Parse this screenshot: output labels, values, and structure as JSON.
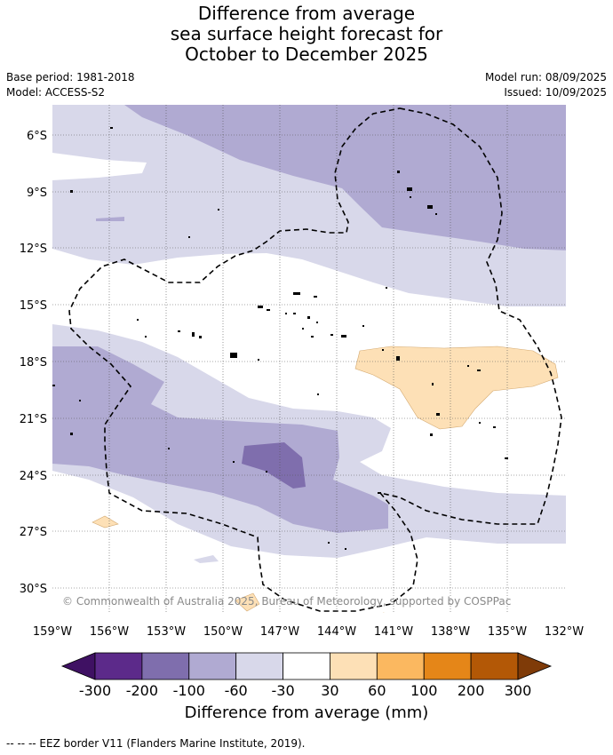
{
  "title": {
    "line1": "Difference from average",
    "line2": "sea surface height forecast for",
    "line3": "October to December 2025"
  },
  "meta": {
    "base_period": "Base period: 1981-2018",
    "model": "Model: ACCESS-S2",
    "model_run": "Model run: 08/09/2025",
    "issued": "Issued: 10/09/2025"
  },
  "copyright": "© Commonwealth of Australia 2025, Bureau of Meteorology, supported by COSPPac",
  "axes": {
    "lat_labels": [
      "6°S",
      "9°S",
      "12°S",
      "15°S",
      "18°S",
      "21°S",
      "24°S",
      "27°S",
      "30°S"
    ],
    "lon_labels": [
      "159°W",
      "156°W",
      "153°W",
      "150°W",
      "147°W",
      "144°W",
      "141°W",
      "138°W",
      "135°W",
      "132°W"
    ]
  },
  "colorbar": {
    "title": "Difference from average (mm)",
    "ticks": [
      "-300",
      "-200",
      "-100",
      "-60",
      "-30",
      "30",
      "60",
      "100",
      "200",
      "300"
    ],
    "colors": [
      "#3f1163",
      "#5c2a8a",
      "#7f6ead",
      "#b0aad2",
      "#d8d8ea",
      "#ffffff",
      "#fde0b6",
      "#fbb860",
      "#e58618",
      "#b35806",
      "#7f3b08"
    ]
  },
  "legend": {
    "eez": "--  --  -- EEZ border V11 (Flanders Marine Institute, 2019)."
  }
}
